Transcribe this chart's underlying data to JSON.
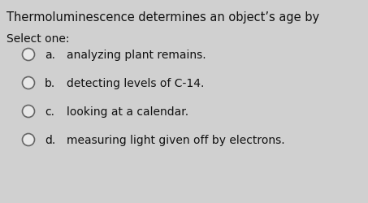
{
  "title": "Thermoluminescence determines an object’s age by",
  "select_label": "Select one:",
  "options": [
    {
      "letter": "a.",
      "text": "analyzing plant remains."
    },
    {
      "letter": "b.",
      "text": "detecting levels of C-14."
    },
    {
      "letter": "c.",
      "text": "looking at a calendar."
    },
    {
      "letter": "d.",
      "text": "measuring light given off by electrons."
    }
  ],
  "bg_color": "#d0d0d0",
  "text_color": "#111111",
  "title_fontsize": 10.5,
  "select_fontsize": 10.0,
  "option_fontsize": 10.0,
  "circle_color": "#e8e8e8",
  "circle_edge_color": "#666666"
}
